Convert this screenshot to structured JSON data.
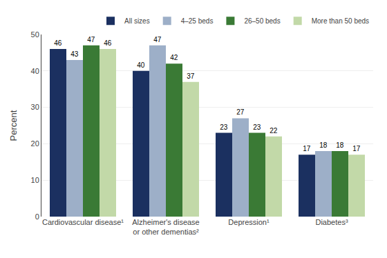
{
  "chart_data": {
    "type": "bar",
    "categories": [
      "Cardiovascular disease¹",
      "Alzheimer's disease\nor other dementias²",
      "Depression¹",
      "Diabetes³"
    ],
    "series": [
      {
        "name": "All sizes",
        "color": "#1b3060",
        "values": [
          46,
          40,
          23,
          17
        ]
      },
      {
        "name": "4–25 beds",
        "color": "#9dafc8",
        "values": [
          43,
          47,
          27,
          18
        ]
      },
      {
        "name": "26–50 beds",
        "color": "#3a7a35",
        "values": [
          47,
          42,
          23,
          18
        ]
      },
      {
        "name": "More than 50 beds",
        "color": "#c2d9a8",
        "values": [
          46,
          37,
          22,
          17
        ]
      }
    ],
    "ylabel": "Percent",
    "ylim": [
      0,
      50
    ],
    "yticks": [
      0,
      10,
      20,
      30,
      40,
      50
    ],
    "grid": true,
    "legend": "upper right",
    "data_labels": true
  }
}
